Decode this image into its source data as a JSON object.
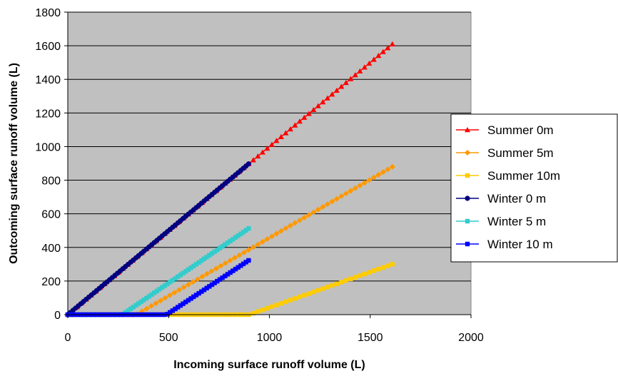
{
  "chart_data": {
    "type": "line",
    "title": "",
    "xlabel": "Incoming surface runoff volume (L)",
    "ylabel": "Outcoming surface runoff volume (L)",
    "xlim": [
      0,
      2000
    ],
    "ylim": [
      0,
      1800
    ],
    "xticks": [
      0,
      500,
      1000,
      1500,
      2000
    ],
    "yticks": [
      0,
      200,
      400,
      600,
      800,
      1000,
      1200,
      1400,
      1600,
      1800
    ],
    "grid": "horizontal",
    "plot_background": "#c0c0c0",
    "legend_position": "right",
    "series": [
      {
        "name": "Summer 0m",
        "color": "#ff0000",
        "marker": "triangle",
        "start": 0,
        "end": 1610,
        "step": 23,
        "points": [
          [
            0,
            0
          ],
          [
            1610,
            1610
          ]
        ]
      },
      {
        "name": "Summer 5m",
        "color": "#ff9900",
        "marker": "diamond",
        "start": 0,
        "end": 1610,
        "step": 23,
        "points": [
          [
            0,
            0
          ],
          [
            340,
            0
          ],
          [
            1610,
            880
          ]
        ]
      },
      {
        "name": "Summer 10m",
        "color": "#ffcc00",
        "marker": "square",
        "start": 0,
        "end": 1610,
        "step": 23,
        "points": [
          [
            0,
            0
          ],
          [
            900,
            0
          ],
          [
            1610,
            300
          ]
        ]
      },
      {
        "name": "Winter 0 m",
        "color": "#000080",
        "marker": "circle",
        "start": 0,
        "end": 900,
        "step": 13,
        "points": [
          [
            0,
            0
          ],
          [
            900,
            900
          ]
        ]
      },
      {
        "name": "Winter 5 m",
        "color": "#33cccc",
        "marker": "square",
        "start": 0,
        "end": 900,
        "step": 13,
        "points": [
          [
            0,
            0
          ],
          [
            270,
            0
          ],
          [
            900,
            515
          ]
        ]
      },
      {
        "name": "Winter 10 m",
        "color": "#0000ff",
        "marker": "square",
        "start": 0,
        "end": 900,
        "step": 13,
        "points": [
          [
            0,
            0
          ],
          [
            490,
            0
          ],
          [
            900,
            325
          ]
        ]
      }
    ]
  }
}
